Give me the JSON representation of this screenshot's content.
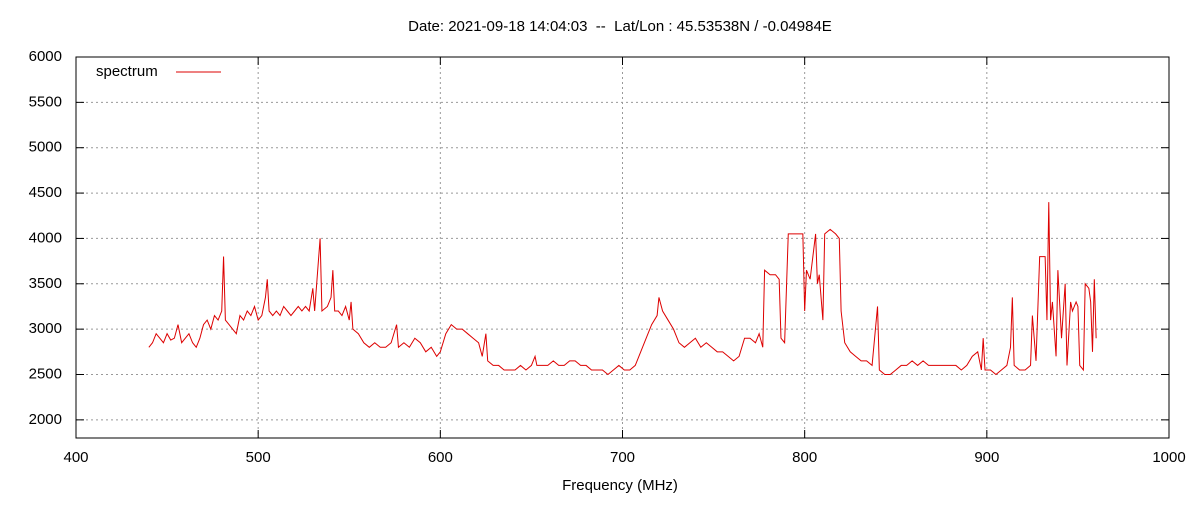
{
  "chart_data": {
    "type": "line",
    "title": "Date: 2021-09-18 14:04:03  --  Lat/Lon : 45.53538N / -0.04984E",
    "x_label": "Frequency (MHz)",
    "xlim": [
      400,
      1000
    ],
    "xticks": [
      400,
      500,
      600,
      700,
      800,
      900,
      1000
    ],
    "ylim": [
      1800,
      6000
    ],
    "yticks": [
      2000,
      2500,
      3000,
      3500,
      4000,
      4500,
      5000,
      5500,
      6000
    ],
    "grid": true,
    "legend": "top-left",
    "x": [
      440,
      442,
      444,
      446,
      448,
      450,
      452,
      454,
      456,
      458,
      460,
      462,
      464,
      466,
      468,
      470,
      472,
      474,
      476,
      478,
      480,
      481,
      482,
      484,
      486,
      488,
      490,
      492,
      494,
      496,
      498,
      500,
      502,
      504,
      505,
      506,
      508,
      510,
      512,
      514,
      516,
      518,
      520,
      522,
      524,
      526,
      528,
      530,
      531,
      534,
      535,
      538,
      540,
      541,
      542,
      544,
      546,
      548,
      550,
      551,
      552,
      555,
      558,
      561,
      564,
      567,
      570,
      573,
      576,
      577,
      580,
      583,
      586,
      589,
      592,
      595,
      598,
      600,
      603,
      606,
      609,
      612,
      615,
      618,
      621,
      623,
      625,
      626,
      629,
      632,
      635,
      638,
      641,
      644,
      647,
      650,
      652,
      653,
      656,
      659,
      662,
      665,
      668,
      671,
      674,
      677,
      680,
      683,
      686,
      689,
      692,
      695,
      698,
      701,
      704,
      707,
      710,
      713,
      716,
      719,
      720,
      722,
      725,
      728,
      731,
      734,
      737,
      740,
      743,
      746,
      749,
      752,
      755,
      758,
      761,
      764,
      767,
      770,
      773,
      775,
      777,
      778,
      781,
      784,
      786,
      787,
      789,
      791,
      794,
      797,
      799,
      800,
      801,
      803,
      806,
      807,
      808,
      810,
      811,
      814,
      817,
      819,
      820,
      822,
      825,
      828,
      831,
      834,
      837,
      840,
      841,
      844,
      847,
      850,
      853,
      856,
      859,
      862,
      865,
      868,
      871,
      874,
      877,
      880,
      883,
      886,
      889,
      892,
      895,
      897,
      898,
      899,
      902,
      905,
      908,
      911,
      913,
      914,
      915,
      918,
      921,
      924,
      925,
      927,
      929,
      932,
      933,
      934,
      935,
      936,
      938,
      939,
      941,
      943,
      944,
      946,
      947,
      949,
      950,
      951,
      953,
      954,
      956,
      957,
      958,
      959,
      960
    ],
    "series": [
      {
        "name": "spectrum",
        "color": "#dd0000",
        "values": [
          2800,
          2850,
          2950,
          2900,
          2850,
          2950,
          2880,
          2900,
          3050,
          2850,
          2900,
          2950,
          2850,
          2800,
          2900,
          3050,
          3100,
          3000,
          3150,
          3100,
          3200,
          3800,
          3100,
          3050,
          3000,
          2950,
          3150,
          3100,
          3200,
          3150,
          3250,
          3100,
          3150,
          3350,
          3550,
          3200,
          3150,
          3200,
          3150,
          3250,
          3200,
          3150,
          3200,
          3250,
          3200,
          3250,
          3200,
          3450,
          3200,
          4000,
          3200,
          3250,
          3350,
          3650,
          3200,
          3200,
          3150,
          3250,
          3100,
          3300,
          3000,
          2950,
          2850,
          2800,
          2850,
          2800,
          2800,
          2850,
          3050,
          2800,
          2850,
          2800,
          2900,
          2850,
          2750,
          2800,
          2700,
          2750,
          2950,
          3050,
          3000,
          3000,
          2950,
          2900,
          2850,
          2700,
          2950,
          2650,
          2600,
          2600,
          2550,
          2550,
          2550,
          2600,
          2550,
          2600,
          2700,
          2600,
          2600,
          2600,
          2650,
          2600,
          2600,
          2650,
          2650,
          2600,
          2600,
          2550,
          2550,
          2550,
          2500,
          2550,
          2600,
          2550,
          2550,
          2600,
          2750,
          2900,
          3050,
          3150,
          3350,
          3200,
          3100,
          3000,
          2850,
          2800,
          2850,
          2900,
          2800,
          2850,
          2800,
          2750,
          2750,
          2700,
          2650,
          2700,
          2900,
          2900,
          2850,
          2950,
          2800,
          3650,
          3600,
          3600,
          3550,
          2900,
          2850,
          4050,
          4050,
          4050,
          4050,
          3200,
          3650,
          3550,
          4050,
          3500,
          3600,
          3100,
          4050,
          4100,
          4050,
          4000,
          3200,
          2850,
          2750,
          2700,
          2650,
          2650,
          2600,
          3250,
          2550,
          2500,
          2500,
          2550,
          2600,
          2600,
          2650,
          2600,
          2650,
          2600,
          2600,
          2600,
          2600,
          2600,
          2600,
          2550,
          2600,
          2700,
          2750,
          2550,
          2900,
          2550,
          2550,
          2500,
          2550,
          2600,
          2800,
          3350,
          2600,
          2550,
          2550,
          2600,
          3150,
          2650,
          3800,
          3800,
          3100,
          4400,
          3100,
          3300,
          2700,
          3650,
          2900,
          3500,
          2600,
          3300,
          3200,
          3300,
          3250,
          2600,
          2550,
          3500,
          3450,
          3300,
          2750,
          3550,
          2900
        ]
      }
    ]
  }
}
